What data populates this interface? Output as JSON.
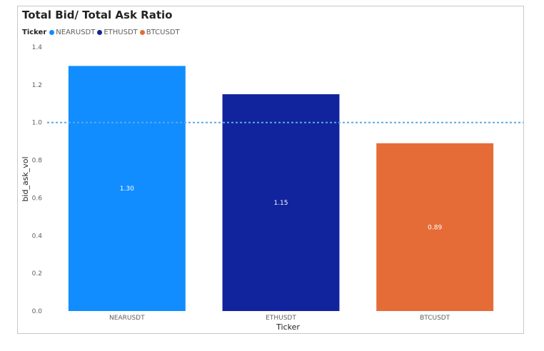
{
  "visual": {
    "title": "Total Bid/ Total Ask Ratio",
    "legend_title": "Ticker"
  },
  "chart_data": {
    "type": "bar",
    "title": "Total Bid/ Total Ask Ratio",
    "xlabel": "Ticker",
    "ylabel": "bid_ask_vol",
    "categories": [
      "NEARUSDT",
      "ETHUSDT",
      "BTCUSDT"
    ],
    "values": [
      1.3,
      1.15,
      0.89
    ],
    "data_labels": [
      "1.30",
      "1.15",
      "0.89"
    ],
    "colors": [
      "#118dff",
      "#12239e",
      "#e66c37"
    ],
    "ylim": [
      0,
      1.4
    ],
    "yticks": [
      "0.0",
      "0.2",
      "0.4",
      "0.6",
      "0.8",
      "1.0",
      "1.2",
      "1.4"
    ],
    "reference_line": {
      "value": 1.0,
      "style": "dotted",
      "color": "#5aa9e6"
    },
    "legend": {
      "title": "Ticker",
      "placement": "top-left",
      "entries": [
        "NEARUSDT",
        "ETHUSDT",
        "BTCUSDT"
      ]
    },
    "grid": false
  }
}
